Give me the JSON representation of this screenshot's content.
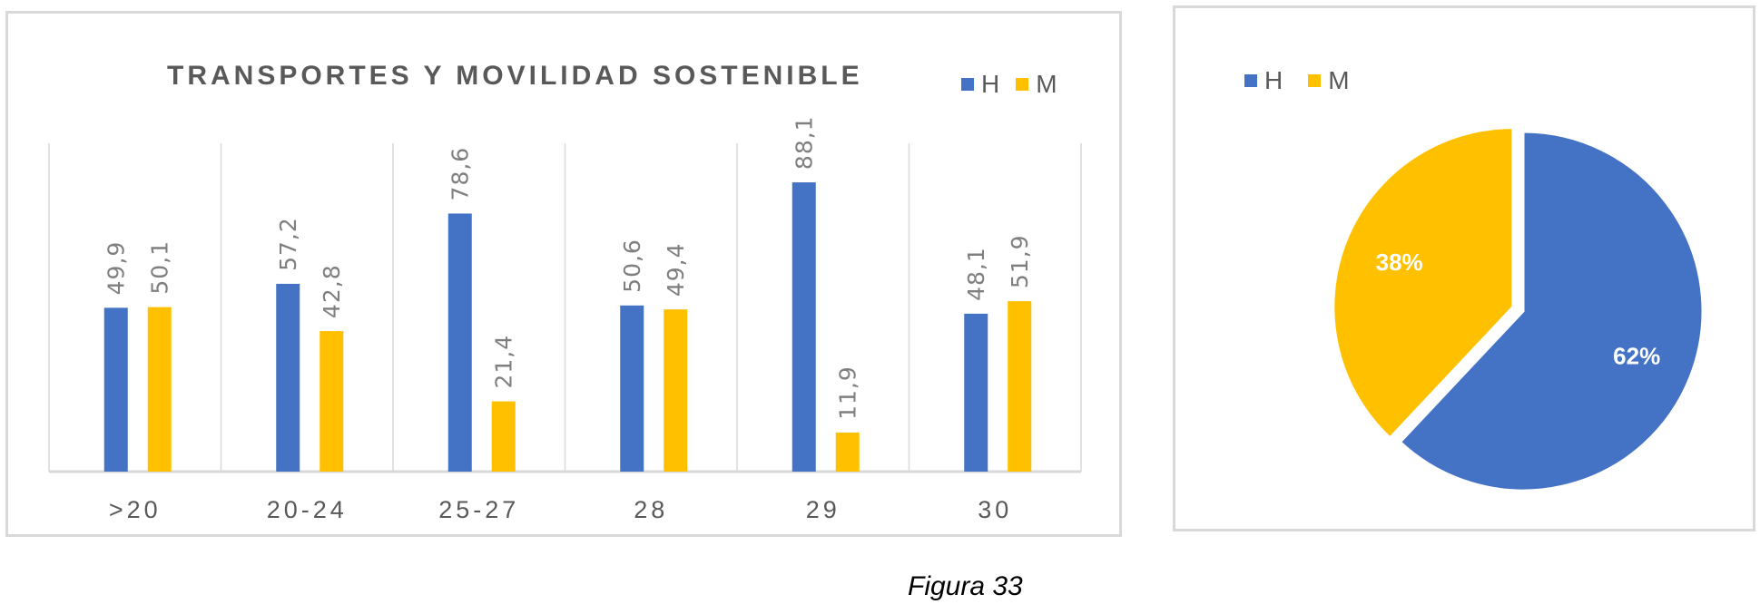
{
  "chart_data": [
    {
      "type": "bar",
      "title": "TRANSPORTES Y MOVILIDAD SOSTENIBLE",
      "categories": [
        ">20",
        "20-24",
        "25-27",
        "28",
        "29",
        "30"
      ],
      "series": [
        {
          "name": "H",
          "color": "#4472c4",
          "values": [
            49.9,
            57.2,
            78.6,
            50.6,
            88.1,
            48.1
          ],
          "labels": [
            "49,9",
            "57,2",
            "78,6",
            "50,6",
            "88,1",
            "48,1"
          ]
        },
        {
          "name": "M",
          "color": "#ffc000",
          "values": [
            50.1,
            42.8,
            21.4,
            49.4,
            11.9,
            51.9
          ],
          "labels": [
            "50,1",
            "42,8",
            "21,4",
            "49,4",
            "11,9",
            "51,9"
          ]
        }
      ],
      "ylim": [
        0,
        100
      ],
      "grid": "vertical category separators",
      "legend": "top-right"
    },
    {
      "type": "pie",
      "slices": [
        {
          "name": "H",
          "value": 62,
          "label": "62%",
          "color": "#4472c4"
        },
        {
          "name": "M",
          "value": 38,
          "label": "38%",
          "color": "#ffc000"
        }
      ],
      "legend": "top-left"
    }
  ],
  "caption": "Figura 33"
}
